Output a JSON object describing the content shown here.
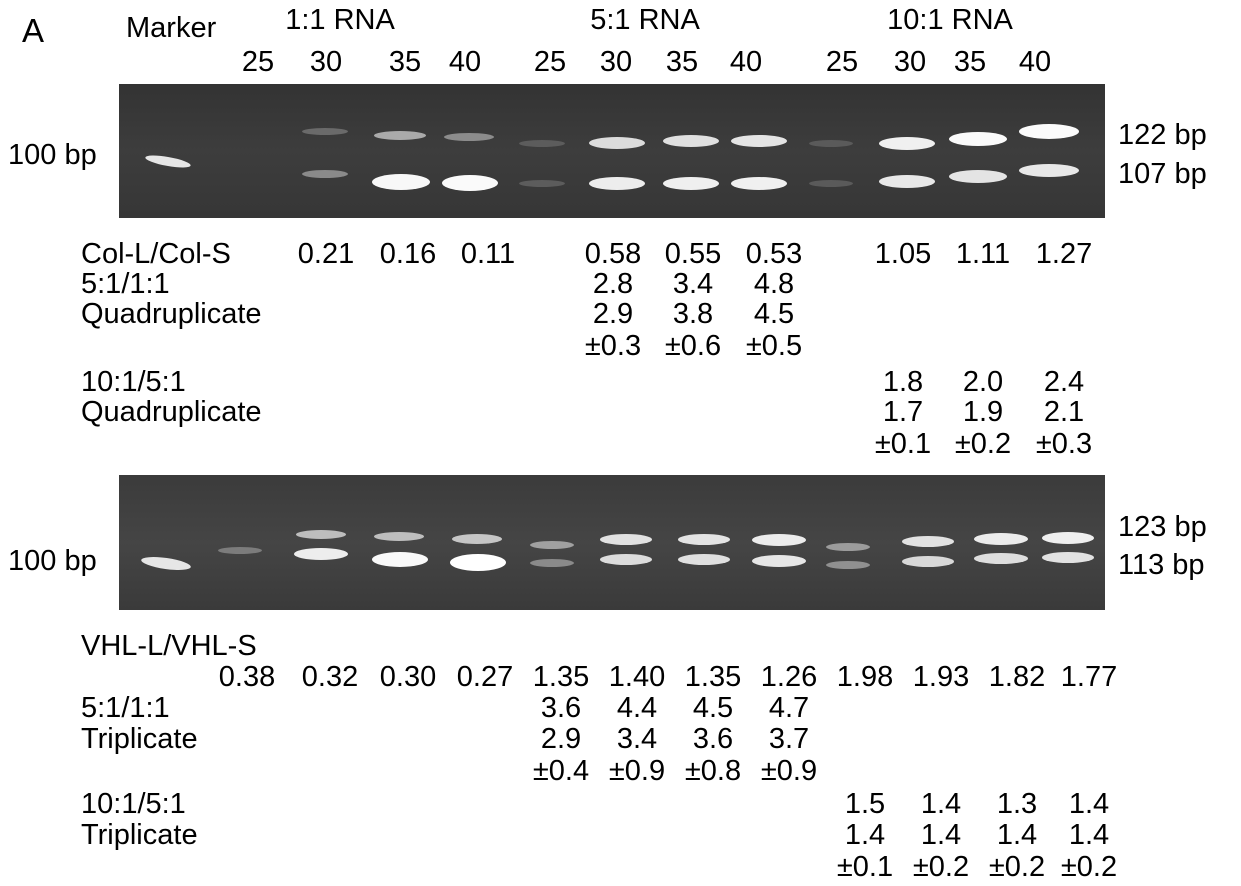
{
  "panel_label": "A",
  "header": {
    "marker": "Marker",
    "groups": [
      "1:1 RNA",
      "5:1 RNA",
      "10:1 RNA"
    ],
    "cycles": [
      "25",
      "30",
      "35",
      "40",
      "25",
      "30",
      "35",
      "40",
      "25",
      "30",
      "35",
      "40"
    ]
  },
  "gel1": {
    "left_label": "100 bp",
    "right_labels": [
      "122 bp",
      "107 bp"
    ]
  },
  "gel2": {
    "left_label": "100 bp",
    "right_labels": [
      "123 bp",
      "113 bp"
    ]
  },
  "col": {
    "ratio_label": "Col-L/Col-S",
    "ratios": [
      "0.21",
      "0.16",
      "0.11",
      "0.58",
      "0.55",
      "0.53",
      "1.05",
      "1.11",
      "1.27"
    ],
    "r51_label": "5:1/1:1",
    "r51": [
      "2.8",
      "3.4",
      "4.8"
    ],
    "quad_label": "Quadruplicate",
    "r51_quad": [
      "2.9",
      "3.8",
      "4.5"
    ],
    "r51_sd": [
      "±0.3",
      "±0.6",
      "±0.5"
    ],
    "r105_label": "10:1/5:1",
    "r105": [
      "1.8",
      "2.0",
      "2.4"
    ],
    "quad_label2": "Quadruplicate",
    "r105_quad": [
      "1.7",
      "1.9",
      "2.1"
    ],
    "r105_sd": [
      "±0.1",
      "±0.2",
      "±0.3"
    ]
  },
  "vhl": {
    "ratio_label": "VHL-L/VHL-S",
    "ratios": [
      "0.38",
      "0.32",
      "0.30",
      "0.27",
      "1.35",
      "1.40",
      "1.35",
      "1.26",
      "1.98",
      "1.93",
      "1.82",
      "1.77"
    ],
    "r51_label": "5:1/1:1",
    "r51": [
      "3.6",
      "4.4",
      "4.5",
      "4.7"
    ],
    "trip_label": "Triplicate",
    "r51_trip": [
      "2.9",
      "3.4",
      "3.6",
      "3.7"
    ],
    "r51_sd": [
      "±0.4",
      "±0.9",
      "±0.8",
      "±0.9"
    ],
    "r105_label": "10:1/5:1",
    "r105": [
      "1.5",
      "1.4",
      "1.3",
      "1.4"
    ],
    "trip_label2": "Triplicate",
    "r105_trip": [
      "1.4",
      "1.4",
      "1.4",
      "1.4"
    ],
    "r105_sd": [
      "±0.1",
      "±0.2",
      "±0.2",
      "±0.2"
    ]
  }
}
